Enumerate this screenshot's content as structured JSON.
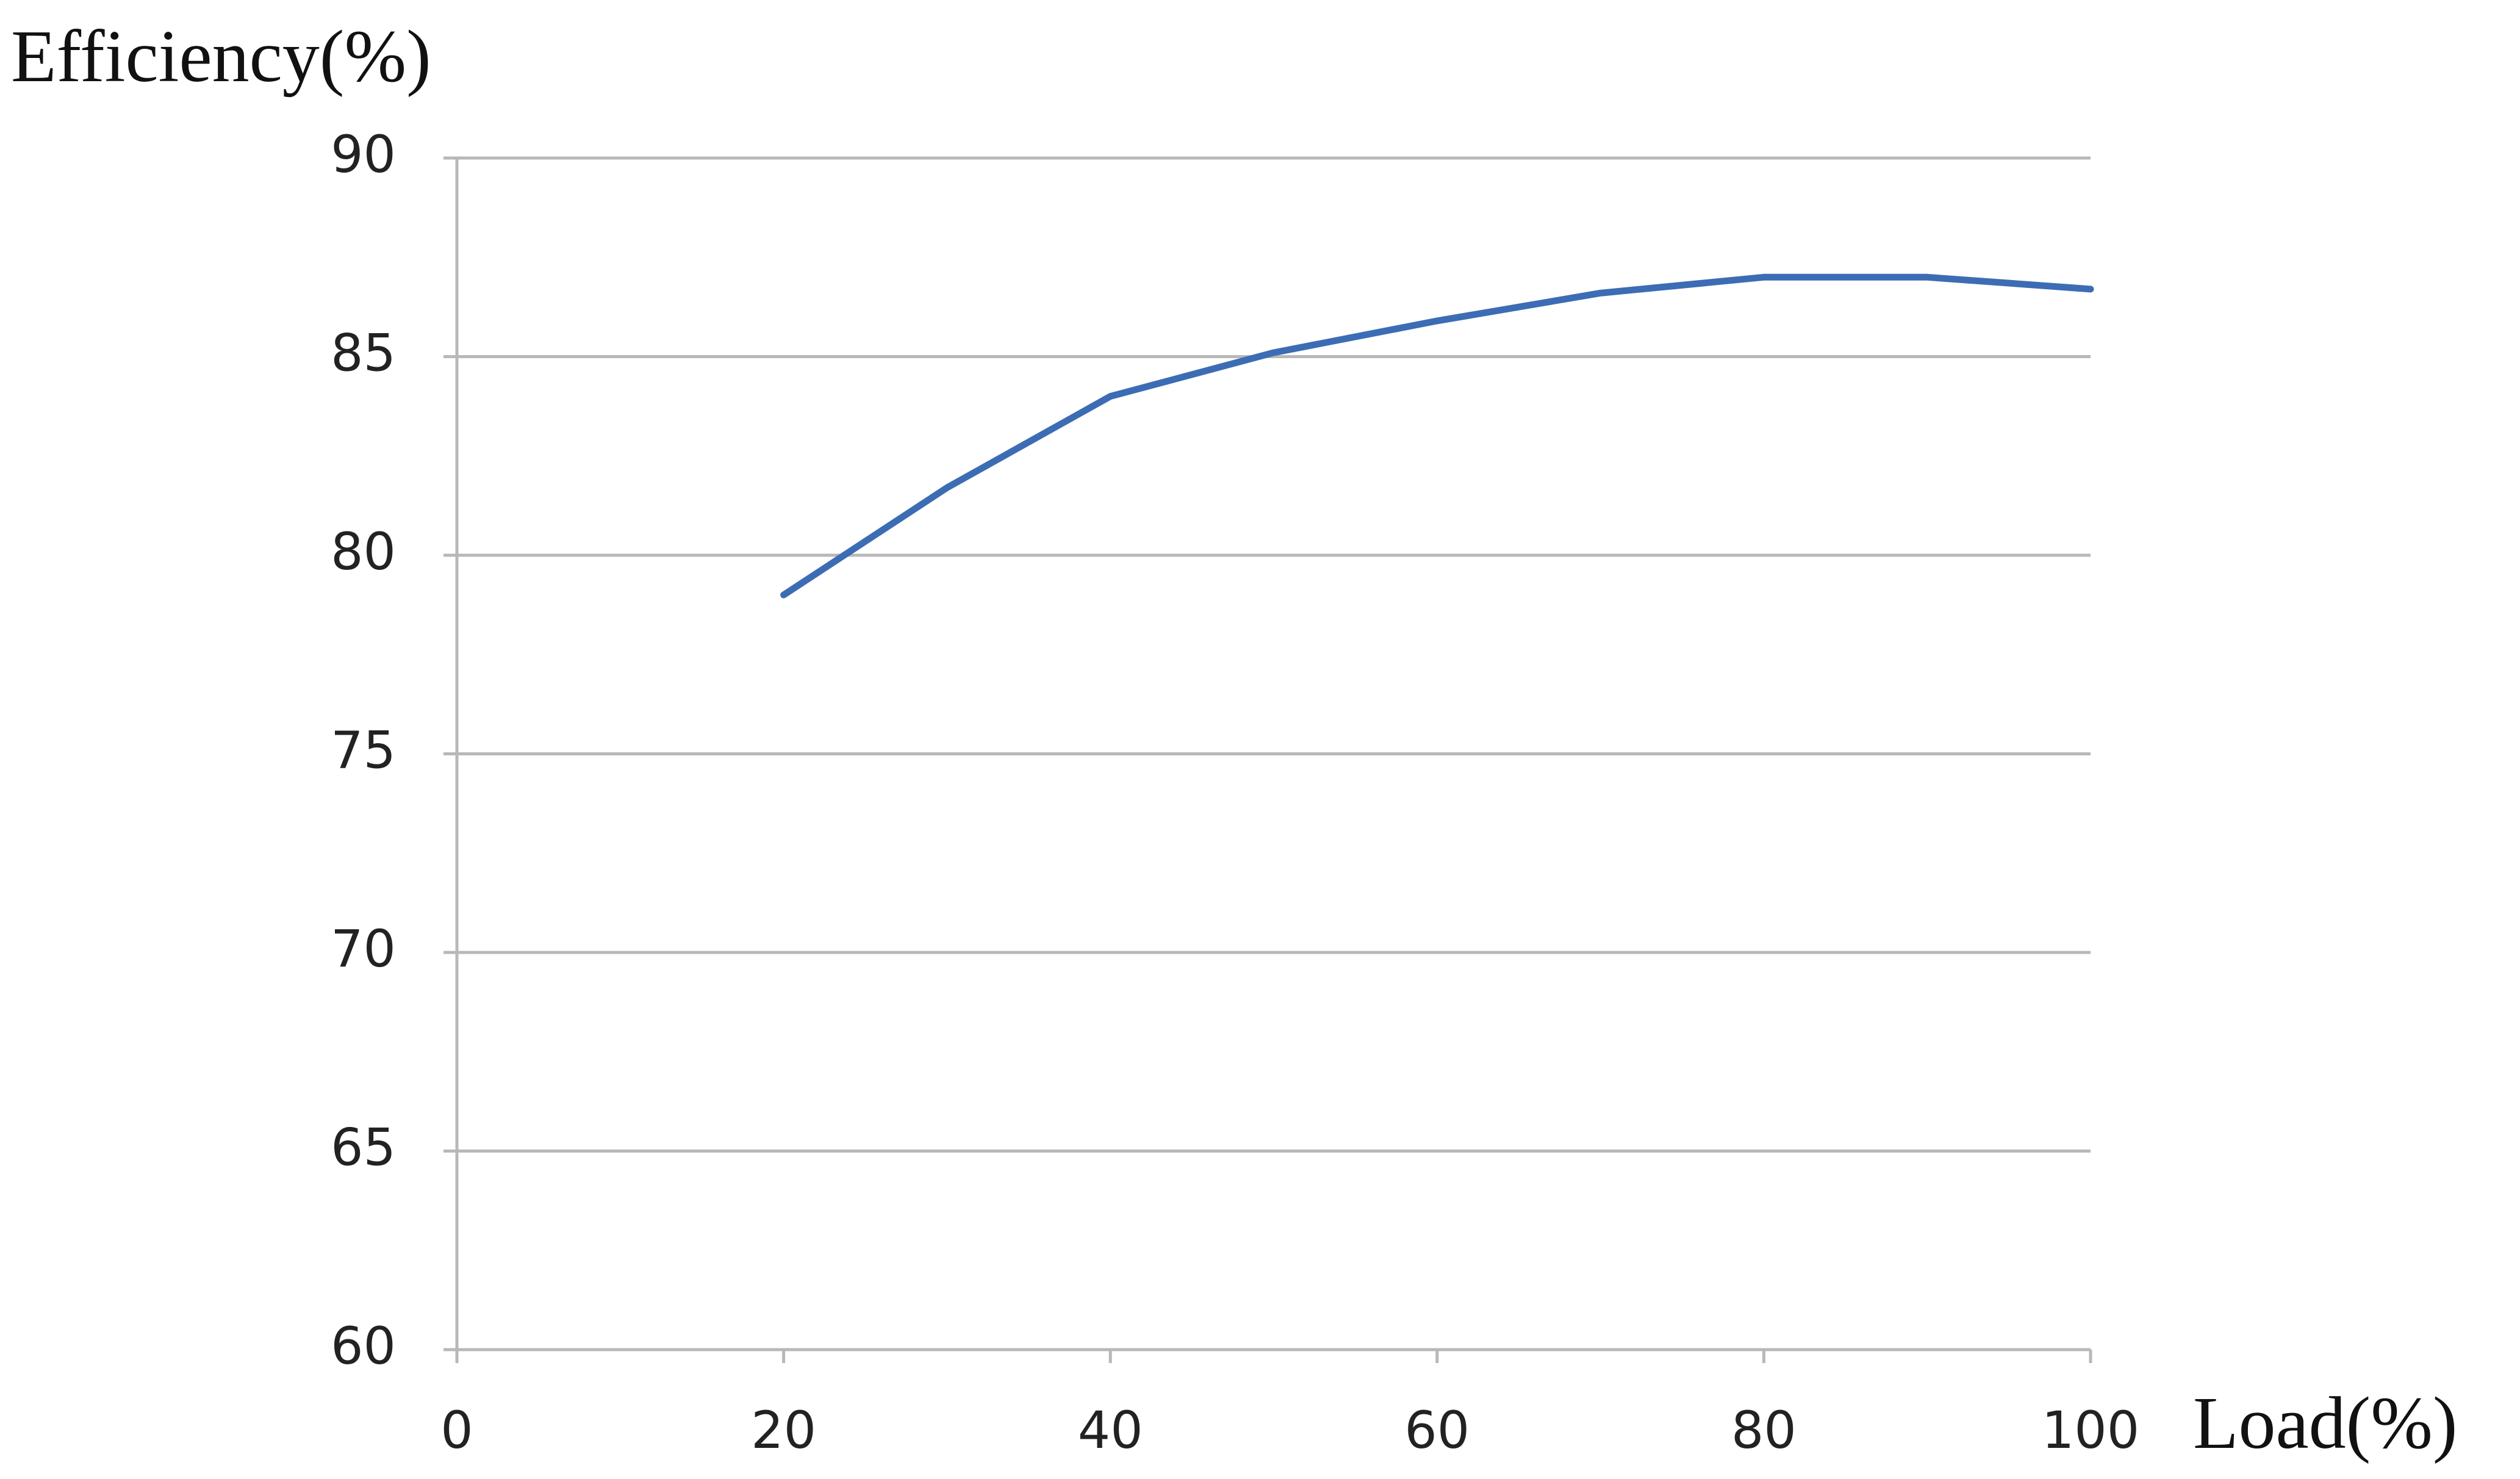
{
  "chart_data": {
    "type": "line",
    "y_label": "Efficiency(%)",
    "x_label": "Load(%)",
    "x": [
      20,
      30,
      40,
      50,
      60,
      70,
      80,
      90,
      100
    ],
    "series": [
      {
        "color": "#3c6db4",
        "values": [
          79,
          81.7,
          84,
          85.1,
          85.9,
          86.6,
          87,
          87,
          86.7
        ]
      }
    ],
    "xlim": [
      0,
      100
    ],
    "xticks": [
      0,
      20,
      40,
      60,
      80,
      100
    ],
    "ylim": [
      60,
      90
    ],
    "yticks": [
      60,
      65,
      70,
      75,
      80,
      85,
      90
    ],
    "grid": true
  }
}
